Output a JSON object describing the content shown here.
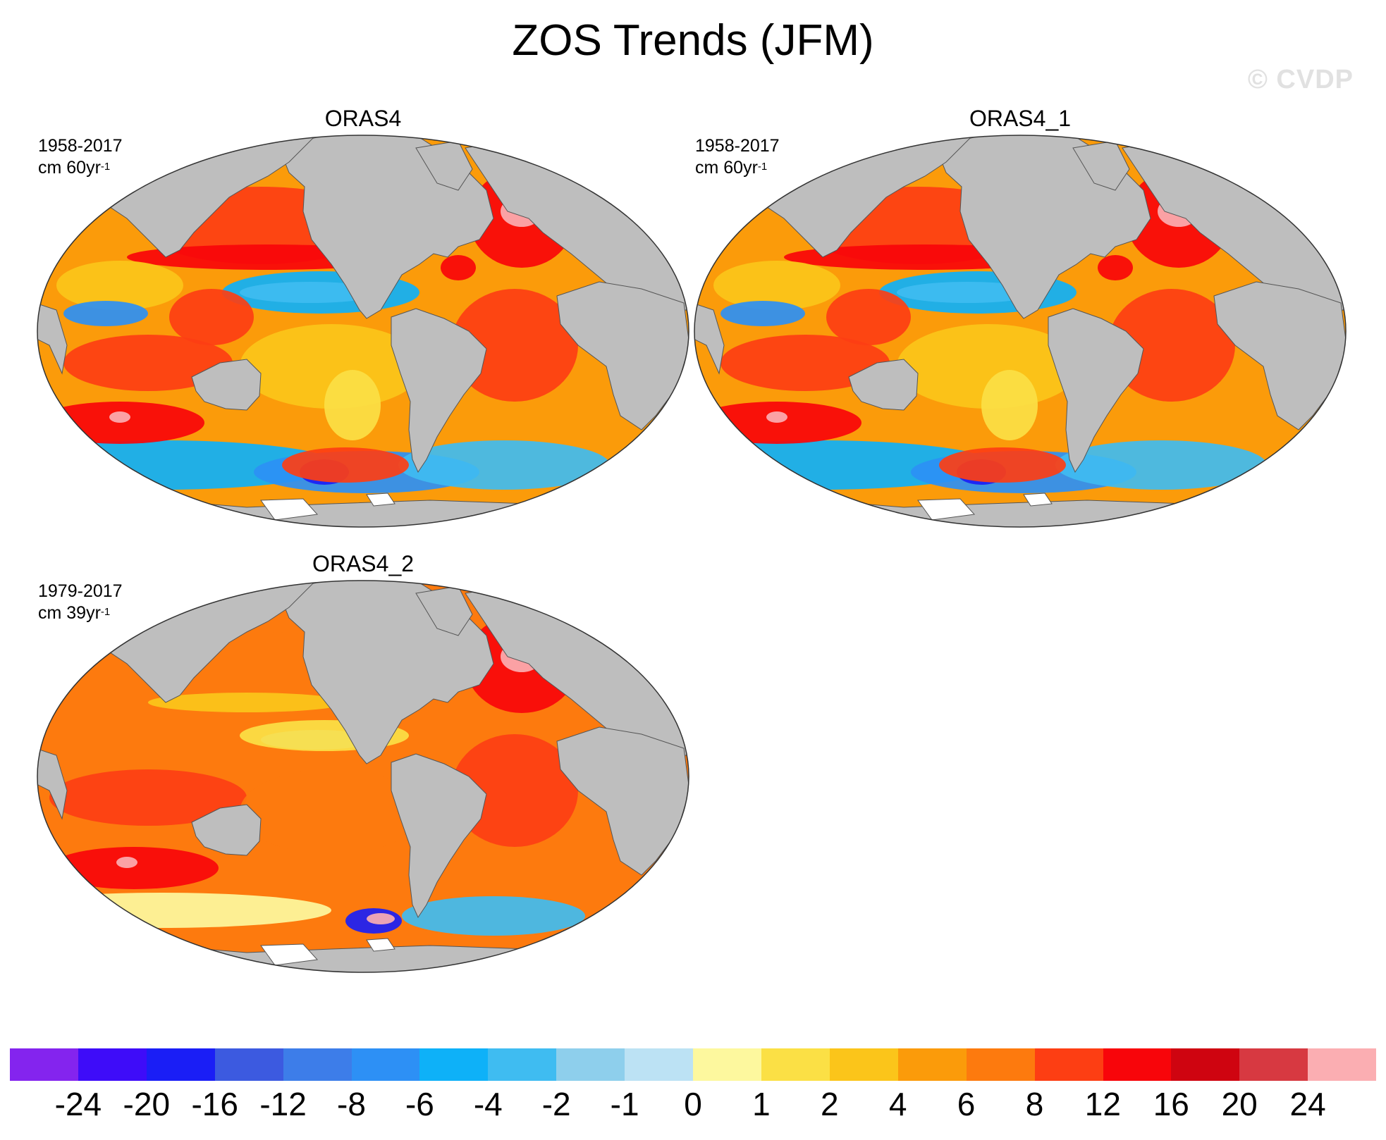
{
  "figure": {
    "title": "ZOS Trends (JFM)",
    "watermark": "© CVDP"
  },
  "panels": [
    {
      "title": "ORAS4",
      "period": "1958-2017",
      "unit_base": "cm 60yr",
      "unit_exp": "-1",
      "variant": "a"
    },
    {
      "title": "ORAS4_1",
      "period": "1958-2017",
      "unit_base": "cm 60yr",
      "unit_exp": "-1",
      "variant": "a"
    },
    {
      "title": "ORAS4_2",
      "period": "1979-2017",
      "unit_base": "cm 39yr",
      "unit_exp": "-1",
      "variant": "b"
    }
  ],
  "colorbar": {
    "colors": [
      "#8424ee",
      "#3e0cf9",
      "#1a1ef6",
      "#3c5ae0",
      "#3d7de9",
      "#2d90f5",
      "#0eb1f8",
      "#3fbcf1",
      "#8ecfec",
      "#bce2f4",
      "#fdf89e",
      "#fbe045",
      "#fbc51a",
      "#fb9b0a",
      "#fd7a0e",
      "#fd3e13",
      "#f8050a",
      "#cf0410",
      "#d73941",
      "#fbaeb2"
    ],
    "labels": [
      "-24",
      "-20",
      "-16",
      "-12",
      "-8",
      "-6",
      "-4",
      "-2",
      "-1",
      "0",
      "1",
      "2",
      "4",
      "6",
      "8",
      "12",
      "16",
      "20",
      "24"
    ],
    "land_color": "#bebebe"
  }
}
